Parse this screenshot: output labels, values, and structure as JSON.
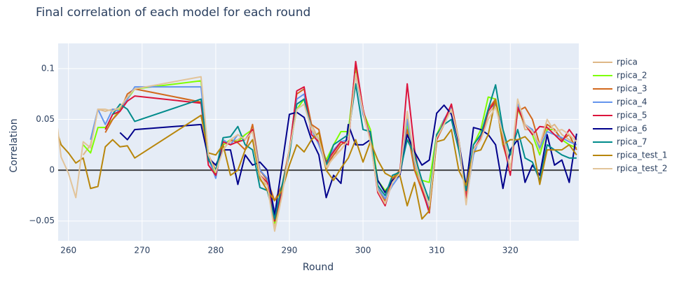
{
  "chart_data": {
    "type": "line",
    "title": "Final correlation of each model for each round",
    "x_label": "Round",
    "y_label": "Correlation",
    "x": [
      258,
      259,
      260,
      261,
      262,
      263,
      264,
      265,
      266,
      267,
      268,
      269,
      278,
      279,
      280,
      281,
      282,
      283,
      284,
      285,
      286,
      287,
      288,
      289,
      290,
      291,
      292,
      293,
      294,
      295,
      296,
      297,
      298,
      299,
      300,
      301,
      302,
      303,
      304,
      305,
      306,
      307,
      308,
      309,
      310,
      311,
      312,
      313,
      314,
      315,
      316,
      317,
      318,
      319,
      320,
      321,
      322,
      323,
      324,
      325,
      326,
      327,
      328,
      329
    ],
    "xlim": [
      258.6,
      329.3
    ],
    "xticks": [
      260,
      270,
      280,
      290,
      300,
      310,
      320
    ],
    "ylim": [
      -0.0695,
      0.1248
    ],
    "yticks": [
      {
        "value": -0.05,
        "label": "−0.05"
      },
      0,
      0.05,
      0.1
    ],
    "grid": true,
    "legend": "right",
    "series": [
      {
        "name": "rpica",
        "color": "#deb887",
        "values": [
          null,
          null,
          null,
          null,
          0.015,
          0.025,
          0.06,
          0.058,
          0.06,
          0.06,
          0.072,
          0.08,
          0.067,
          0.01,
          0.0,
          0.025,
          0.028,
          0.03,
          0.035,
          0.04,
          -0.01,
          -0.015,
          -0.055,
          -0.02,
          0.02,
          0.065,
          0.07,
          0.045,
          0.03,
          0.0,
          0.015,
          0.02,
          0.03,
          0.095,
          0.055,
          0.03,
          -0.015,
          -0.03,
          -0.01,
          0.0,
          0.055,
          0.005,
          -0.02,
          -0.03,
          0.03,
          0.045,
          0.06,
          0.03,
          -0.03,
          0.02,
          0.03,
          0.055,
          0.065,
          0.04,
          0.0,
          0.065,
          0.04,
          0.04,
          0.02,
          0.04,
          0.045,
          0.035,
          0.03,
          0.025
        ]
      },
      {
        "name": "rpica_2",
        "color": "#7fff00",
        "values": [
          null,
          null,
          null,
          null,
          0.025,
          0.017,
          0.042,
          0.042,
          0.05,
          0.06,
          0.07,
          0.08,
          0.088,
          0.015,
          -0.005,
          0.025,
          0.03,
          0.028,
          0.035,
          0.04,
          -0.005,
          -0.012,
          -0.052,
          -0.02,
          0.02,
          0.06,
          0.07,
          0.04,
          0.03,
          0.01,
          0.025,
          0.038,
          0.038,
          0.1,
          0.058,
          0.04,
          -0.01,
          -0.02,
          -0.012,
          0.0,
          0.045,
          0.0,
          -0.01,
          -0.012,
          0.035,
          0.05,
          0.06,
          0.03,
          -0.03,
          0.025,
          0.04,
          0.072,
          0.07,
          0.035,
          0.0,
          0.06,
          0.045,
          0.035,
          0.015,
          0.04,
          0.04,
          0.03,
          0.025,
          0.022
        ]
      },
      {
        "name": "rpica_3",
        "color": "#d2691e",
        "values": [
          null,
          null,
          null,
          null,
          null,
          null,
          null,
          0.037,
          0.05,
          0.058,
          0.075,
          0.08,
          0.067,
          0.015,
          0.0,
          0.02,
          0.03,
          0.027,
          0.02,
          0.045,
          0.0,
          -0.01,
          -0.03,
          -0.015,
          0.02,
          0.075,
          0.08,
          0.045,
          0.04,
          0.005,
          0.015,
          0.025,
          0.03,
          0.105,
          0.06,
          0.03,
          -0.02,
          -0.03,
          -0.008,
          0.0,
          0.04,
          0.0,
          -0.02,
          -0.04,
          0.03,
          0.045,
          0.065,
          0.03,
          -0.025,
          0.02,
          0.03,
          0.06,
          0.07,
          0.025,
          0.0,
          0.058,
          0.062,
          0.05,
          0.025,
          0.045,
          0.04,
          0.03,
          0.035,
          0.02
        ]
      },
      {
        "name": "rpica_4",
        "color": "#6495ed",
        "values": [
          null,
          null,
          null,
          null,
          null,
          0.03,
          0.06,
          0.045,
          0.06,
          0.058,
          0.07,
          0.082,
          0.082,
          0.012,
          -0.008,
          0.03,
          0.025,
          0.035,
          0.03,
          0.04,
          0.0,
          -0.008,
          -0.04,
          -0.022,
          0.018,
          0.07,
          0.075,
          0.04,
          0.025,
          0.005,
          0.02,
          0.028,
          0.03,
          0.095,
          0.055,
          0.035,
          -0.018,
          -0.028,
          -0.015,
          -0.005,
          0.05,
          0.008,
          -0.015,
          -0.038,
          0.03,
          0.05,
          0.062,
          0.028,
          -0.03,
          0.015,
          0.035,
          0.06,
          0.065,
          0.038,
          -0.002,
          0.065,
          0.045,
          0.04,
          0.022,
          0.038,
          0.035,
          0.032,
          0.028,
          0.025
        ]
      },
      {
        "name": "rpica_5",
        "color": "#dc143c",
        "values": [
          null,
          null,
          null,
          null,
          null,
          null,
          null,
          0.04,
          0.055,
          0.058,
          0.068,
          0.073,
          0.066,
          0.005,
          -0.005,
          0.028,
          0.025,
          0.028,
          0.03,
          0.04,
          -0.005,
          -0.012,
          -0.05,
          -0.02,
          0.018,
          0.078,
          0.082,
          0.035,
          0.028,
          0.008,
          0.018,
          0.028,
          0.025,
          0.107,
          0.06,
          0.03,
          -0.022,
          -0.035,
          -0.01,
          -0.003,
          0.085,
          0.02,
          -0.018,
          -0.042,
          0.03,
          0.048,
          0.065,
          0.025,
          -0.028,
          0.02,
          0.032,
          0.058,
          0.068,
          0.03,
          -0.005,
          0.062,
          0.045,
          0.035,
          0.043,
          0.042,
          0.035,
          0.028,
          0.04,
          0.03
        ]
      },
      {
        "name": "rpica_6",
        "color": "#00008b",
        "values": [
          null,
          null,
          null,
          null,
          null,
          null,
          null,
          null,
          null,
          0.037,
          0.03,
          0.04,
          0.045,
          0.012,
          0.005,
          0.02,
          0.02,
          -0.014,
          0.015,
          0.005,
          0.008,
          0.0,
          -0.045,
          0.005,
          0.055,
          0.057,
          0.052,
          0.03,
          0.015,
          -0.027,
          -0.005,
          -0.013,
          0.045,
          0.025,
          0.025,
          0.03,
          -0.01,
          -0.022,
          -0.01,
          -0.005,
          0.035,
          0.018,
          0.005,
          0.01,
          0.056,
          0.064,
          0.055,
          0.028,
          -0.016,
          0.042,
          0.04,
          0.035,
          0.025,
          -0.018,
          0.02,
          0.03,
          -0.012,
          0.005,
          -0.005,
          0.035,
          0.005,
          0.01,
          -0.012,
          0.036
        ]
      },
      {
        "name": "rpica_7",
        "color": "#008b8b",
        "values": [
          null,
          null,
          null,
          null,
          null,
          null,
          null,
          null,
          0.055,
          0.065,
          0.06,
          0.048,
          0.07,
          0.01,
          0.0,
          0.032,
          0.033,
          0.043,
          0.025,
          0.02,
          -0.017,
          -0.02,
          -0.048,
          -0.015,
          0.015,
          0.065,
          0.07,
          0.04,
          0.03,
          0.005,
          0.025,
          0.03,
          0.035,
          0.085,
          0.04,
          0.038,
          -0.015,
          -0.025,
          -0.005,
          -0.002,
          0.03,
          0.015,
          -0.01,
          -0.03,
          0.035,
          0.045,
          0.05,
          0.02,
          -0.02,
          0.025,
          0.035,
          0.06,
          0.084,
          0.04,
          0.015,
          0.04,
          0.012,
          0.008,
          -0.01,
          0.025,
          0.02,
          0.015,
          0.012,
          0.012
        ]
      },
      {
        "name": "rpica_test_1",
        "color": "#b8860b",
        "values": [
          0.048,
          0.025,
          0.017,
          0.007,
          0.012,
          -0.018,
          -0.016,
          0.023,
          0.03,
          0.023,
          0.024,
          0.012,
          0.054,
          0.017,
          0.015,
          0.025,
          -0.005,
          0.0,
          0.02,
          0.03,
          -0.008,
          -0.02,
          -0.03,
          -0.02,
          0.005,
          0.025,
          0.018,
          0.03,
          0.037,
          0.0,
          -0.01,
          0.002,
          0.012,
          0.03,
          0.008,
          0.028,
          0.01,
          -0.003,
          -0.007,
          -0.005,
          -0.035,
          -0.012,
          -0.048,
          -0.04,
          0.028,
          0.03,
          0.04,
          0.0,
          -0.015,
          0.018,
          0.02,
          0.035,
          0.07,
          0.025,
          0.03,
          0.03,
          0.033,
          0.025,
          -0.014,
          0.02,
          0.02,
          0.02,
          0.025,
          0.015
        ]
      },
      {
        "name": "rpica_test_2",
        "color": "#e2c49a",
        "values": [
          0.072,
          0.013,
          -0.003,
          -0.027,
          0.028,
          0.022,
          0.06,
          0.06,
          0.058,
          0.062,
          0.072,
          0.08,
          0.092,
          0.015,
          -0.002,
          0.02,
          0.03,
          0.035,
          0.03,
          0.038,
          -0.005,
          -0.015,
          -0.06,
          -0.025,
          0.02,
          0.06,
          0.065,
          0.04,
          0.03,
          0.003,
          0.012,
          0.02,
          0.03,
          0.095,
          0.058,
          0.028,
          -0.02,
          -0.033,
          -0.012,
          -0.003,
          0.058,
          0.01,
          -0.015,
          -0.035,
          0.032,
          0.045,
          0.06,
          0.03,
          -0.034,
          0.02,
          0.03,
          0.05,
          0.062,
          0.035,
          0.0,
          0.07,
          0.045,
          0.038,
          0.025,
          0.05,
          0.038,
          0.04,
          0.035,
          0.028
        ]
      }
    ]
  }
}
